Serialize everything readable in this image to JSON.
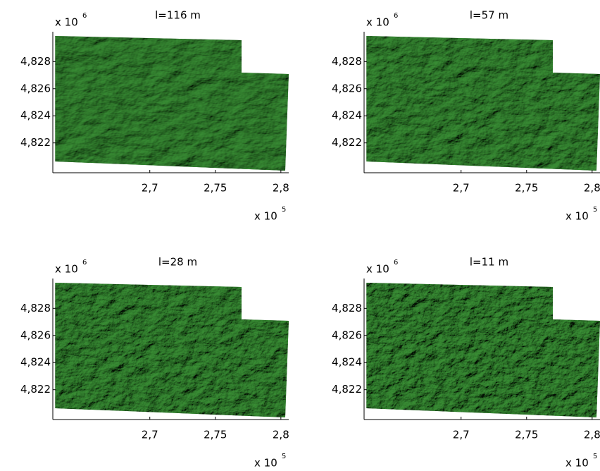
{
  "chart_data": [
    {
      "type": "image",
      "title": "l=116 m",
      "xlim": [
        2.626,
        2.806
      ],
      "ylim": [
        4.8198,
        4.8302
      ],
      "xticks": [
        {
          "value": 2.7,
          "label": "2,7"
        },
        {
          "value": 2.75,
          "label": "2,75"
        },
        {
          "value": 2.8,
          "label": "2,8"
        }
      ],
      "yticks": [
        {
          "value": 4.822,
          "label": "4,822"
        },
        {
          "value": 4.824,
          "label": "4,824"
        },
        {
          "value": 4.826,
          "label": "4,826"
        },
        {
          "value": 4.828,
          "label": "4,828"
        }
      ],
      "x_multiplier": {
        "base": "x 10",
        "exponent": 5
      },
      "y_multiplier": {
        "base": "x 10",
        "exponent": 6
      }
    },
    {
      "type": "image",
      "title": "l=57 m",
      "xlim": [
        2.626,
        2.806
      ],
      "ylim": [
        4.8198,
        4.8302
      ],
      "xticks": [
        {
          "value": 2.7,
          "label": "2,7"
        },
        {
          "value": 2.75,
          "label": "2,75"
        },
        {
          "value": 2.8,
          "label": "2,8"
        }
      ],
      "yticks": [
        {
          "value": 4.822,
          "label": "4,822"
        },
        {
          "value": 4.824,
          "label": "4,824"
        },
        {
          "value": 4.826,
          "label": "4,826"
        },
        {
          "value": 4.828,
          "label": "4,828"
        }
      ],
      "x_multiplier": {
        "base": "x 10",
        "exponent": 5
      },
      "y_multiplier": {
        "base": "x 10",
        "exponent": 6
      }
    },
    {
      "type": "image",
      "title": "l=28 m",
      "xlim": [
        2.626,
        2.806
      ],
      "ylim": [
        4.8198,
        4.8302
      ],
      "xticks": [
        {
          "value": 2.7,
          "label": "2,7"
        },
        {
          "value": 2.75,
          "label": "2,75"
        },
        {
          "value": 2.8,
          "label": "2,8"
        }
      ],
      "yticks": [
        {
          "value": 4.822,
          "label": "4,822"
        },
        {
          "value": 4.824,
          "label": "4,824"
        },
        {
          "value": 4.826,
          "label": "4,826"
        },
        {
          "value": 4.828,
          "label": "4,828"
        }
      ],
      "x_multiplier": {
        "base": "x 10",
        "exponent": 5
      },
      "y_multiplier": {
        "base": "x 10",
        "exponent": 6
      }
    },
    {
      "type": "image",
      "title": "l=11 m",
      "xlim": [
        2.626,
        2.806
      ],
      "ylim": [
        4.8198,
        4.8302
      ],
      "xticks": [
        {
          "value": 2.7,
          "label": "2,7"
        },
        {
          "value": 2.75,
          "label": "2,75"
        },
        {
          "value": 2.8,
          "label": "2,8"
        }
      ],
      "yticks": [
        {
          "value": 4.822,
          "label": "4,822"
        },
        {
          "value": 4.824,
          "label": "4,824"
        },
        {
          "value": 4.826,
          "label": "4,826"
        },
        {
          "value": 4.828,
          "label": "4,828"
        }
      ],
      "x_multiplier": {
        "base": "x 10",
        "exponent": 5
      },
      "y_multiplier": {
        "base": "x 10",
        "exponent": 6
      }
    }
  ]
}
